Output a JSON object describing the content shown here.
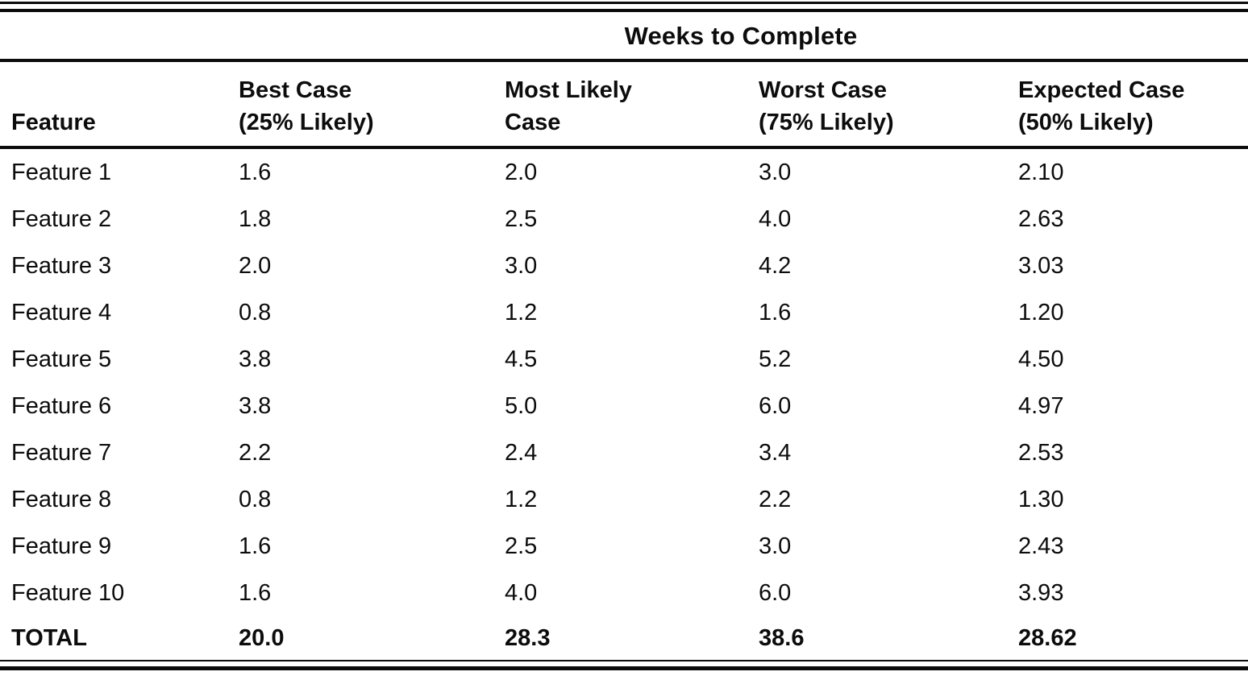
{
  "table": {
    "spanner": "Weeks to Complete",
    "columns": [
      {
        "line1": "Feature",
        "line2": ""
      },
      {
        "line1": "Best Case",
        "line2": "(25% Likely)"
      },
      {
        "line1": "Most Likely",
        "line2": "Case"
      },
      {
        "line1": "Worst Case",
        "line2": "(75% Likely)"
      },
      {
        "line1": "Expected Case",
        "line2": "(50% Likely)"
      }
    ],
    "rows": [
      {
        "feature": "Feature 1",
        "best": "1.6",
        "most_likely": "2.0",
        "worst": "3.0",
        "expected": "2.10"
      },
      {
        "feature": "Feature 2",
        "best": "1.8",
        "most_likely": "2.5",
        "worst": "4.0",
        "expected": "2.63"
      },
      {
        "feature": "Feature 3",
        "best": "2.0",
        "most_likely": "3.0",
        "worst": "4.2",
        "expected": "3.03"
      },
      {
        "feature": "Feature 4",
        "best": "0.8",
        "most_likely": "1.2",
        "worst": "1.6",
        "expected": "1.20"
      },
      {
        "feature": "Feature 5",
        "best": "3.8",
        "most_likely": "4.5",
        "worst": "5.2",
        "expected": "4.50"
      },
      {
        "feature": "Feature 6",
        "best": "3.8",
        "most_likely": "5.0",
        "worst": "6.0",
        "expected": "4.97"
      },
      {
        "feature": "Feature 7",
        "best": "2.2",
        "most_likely": "2.4",
        "worst": "3.4",
        "expected": "2.53"
      },
      {
        "feature": "Feature 8",
        "best": "0.8",
        "most_likely": "1.2",
        "worst": "2.2",
        "expected": "1.30"
      },
      {
        "feature": "Feature 9",
        "best": "1.6",
        "most_likely": "2.5",
        "worst": "3.0",
        "expected": "2.43"
      },
      {
        "feature": "Feature 10",
        "best": "1.6",
        "most_likely": "4.0",
        "worst": "6.0",
        "expected": "3.93"
      }
    ],
    "total": {
      "feature": "TOTAL",
      "best": "20.0",
      "most_likely": "28.3",
      "worst": "38.6",
      "expected": "28.62"
    }
  },
  "chart_data": {
    "type": "table",
    "title": "Weeks to Complete",
    "columns": [
      "Feature",
      "Best Case (25% Likely)",
      "Most Likely Case",
      "Worst Case (75% Likely)",
      "Expected Case (50% Likely)"
    ],
    "rows": [
      [
        "Feature 1",
        1.6,
        2.0,
        3.0,
        2.1
      ],
      [
        "Feature 2",
        1.8,
        2.5,
        4.0,
        2.63
      ],
      [
        "Feature 3",
        2.0,
        3.0,
        4.2,
        3.03
      ],
      [
        "Feature 4",
        0.8,
        1.2,
        1.6,
        1.2
      ],
      [
        "Feature 5",
        3.8,
        4.5,
        5.2,
        4.5
      ],
      [
        "Feature 6",
        3.8,
        5.0,
        6.0,
        4.97
      ],
      [
        "Feature 7",
        2.2,
        2.4,
        3.4,
        2.53
      ],
      [
        "Feature 8",
        0.8,
        1.2,
        2.2,
        1.3
      ],
      [
        "Feature 9",
        1.6,
        2.5,
        3.0,
        2.43
      ],
      [
        "Feature 10",
        1.6,
        4.0,
        6.0,
        3.93
      ]
    ],
    "total_row": [
      "TOTAL",
      20.0,
      28.3,
      38.6,
      28.62
    ]
  }
}
